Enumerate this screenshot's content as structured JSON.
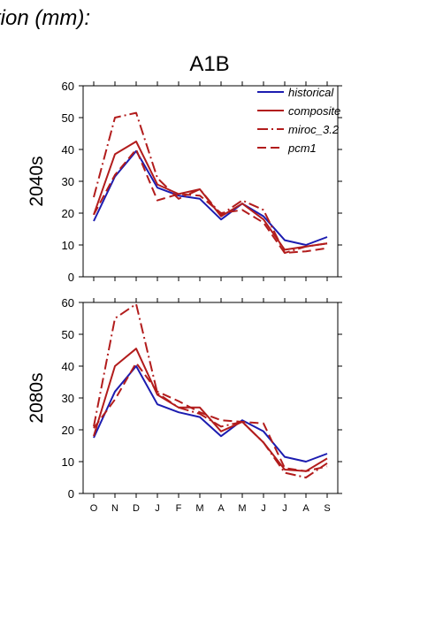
{
  "top_title": "tion (mm):",
  "chart_data": {
    "type": "line",
    "title": "A1B",
    "months": [
      "O",
      "N",
      "D",
      "J",
      "F",
      "M",
      "A",
      "M",
      "J",
      "J",
      "A",
      "S"
    ],
    "ylim": [
      0,
      60
    ],
    "yticks": [
      0,
      10,
      20,
      30,
      40,
      50,
      60
    ],
    "legend_position": "top-right",
    "colors": {
      "historical": "#1c1cb0",
      "composite": "#b21c1c",
      "miroc_3.2": "#b21c1c",
      "pcm1": "#b21c1c"
    },
    "legend": [
      {
        "name": "historical",
        "style": "solid",
        "color": "#1c1cb0"
      },
      {
        "name": "composite",
        "style": "solid",
        "color": "#b21c1c"
      },
      {
        "name": "miroc_3.2",
        "style": "dashdot",
        "color": "#b21c1c"
      },
      {
        "name": "pcm1",
        "style": "dashed",
        "color": "#b21c1c"
      }
    ],
    "panels": [
      {
        "label": "2040s",
        "series": [
          {
            "name": "historical",
            "style": "solid",
            "values": [
              17.5,
              31.5,
              39.5,
              28,
              25.5,
              24.5,
              18,
              23,
              19,
              11.5,
              10,
              12.5
            ]
          },
          {
            "name": "composite",
            "style": "solid",
            "values": [
              19.5,
              38.5,
              42.5,
              29,
              26,
              27.5,
              19,
              23,
              18,
              8.5,
              9.5,
              10.5
            ]
          },
          {
            "name": "miroc_3.2",
            "style": "dashdot",
            "values": [
              25,
              50,
              51.5,
              31,
              24.5,
              27.5,
              19.5,
              24,
              21,
              7.5,
              9.5,
              10.5
            ]
          },
          {
            "name": "pcm1",
            "style": "dashed",
            "values": [
              19.5,
              32,
              40,
              24,
              26,
              25.5,
              20,
              21,
              17,
              7.5,
              8,
              9
            ]
          }
        ]
      },
      {
        "label": "2080s",
        "series": [
          {
            "name": "historical",
            "style": "solid",
            "values": [
              17.5,
              32,
              40,
              28,
              25.5,
              24,
              18,
              23,
              19.5,
              11.5,
              10,
              12.5
            ]
          },
          {
            "name": "composite",
            "style": "solid",
            "values": [
              18,
              40,
              45.5,
              31,
              27,
              27,
              19.5,
              22.5,
              16,
              7.5,
              7,
              11
            ]
          },
          {
            "name": "miroc_3.2",
            "style": "dashdot",
            "values": [
              21,
              55,
              59.5,
              31.5,
              27,
              25,
              21,
              22.5,
              16,
              6.5,
              5,
              9.5
            ]
          },
          {
            "name": "pcm1",
            "style": "dashed",
            "values": [
              20.5,
              29.5,
              41,
              32,
              29,
              25.5,
              23,
              22.5,
              22,
              8,
              7,
              8.5
            ]
          }
        ]
      }
    ]
  }
}
